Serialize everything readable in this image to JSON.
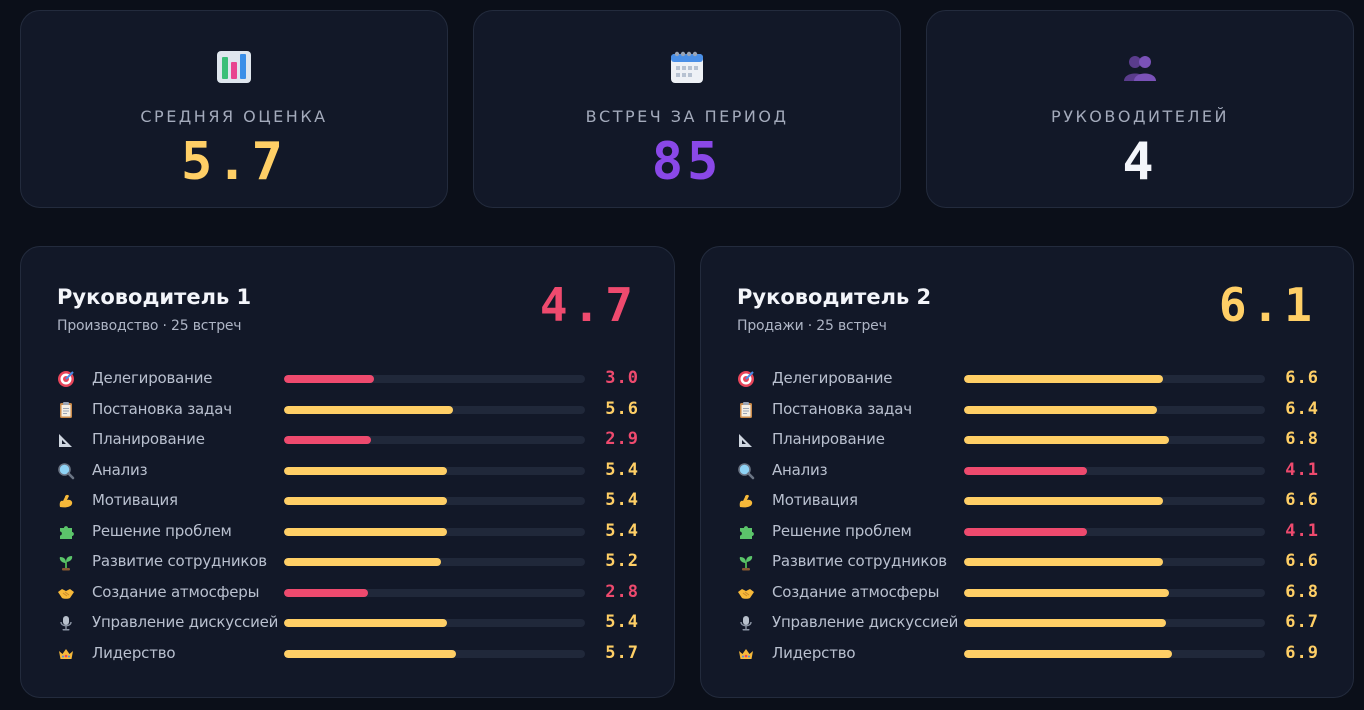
{
  "colors": {
    "yellow": "#ffcf66",
    "purple": "#8a48e8",
    "white": "#f3f5fa",
    "red": "#ee4a6e"
  },
  "stats": [
    {
      "icon": "bar-chart-icon",
      "label": "СРЕДНЯЯ ОЦЕНКА",
      "value": "5.7",
      "color": "#ffcf66"
    },
    {
      "icon": "calendar-icon",
      "label": "ВСТРЕЧ ЗА ПЕРИОД",
      "value": "85",
      "color": "#8a48e8"
    },
    {
      "icon": "people-icon",
      "label": "РУКОВОДИТЕЛЕЙ",
      "value": "4",
      "color": "#f3f5fa"
    }
  ],
  "managers": [
    {
      "name": "Руководитель 1",
      "subtitle": "Производство · 25 встреч",
      "score": "4.7",
      "score_color": "#ee4a6e",
      "metrics": [
        {
          "icon": "target-icon",
          "label": "Делегирование",
          "value": "3.0",
          "fill": 0.3,
          "status": "low"
        },
        {
          "icon": "clipboard-icon",
          "label": "Постановка задач",
          "value": "5.6",
          "fill": 0.56,
          "status": "ok"
        },
        {
          "icon": "ruler-icon",
          "label": "Планирование",
          "value": "2.9",
          "fill": 0.29,
          "status": "low"
        },
        {
          "icon": "magnifier-icon",
          "label": "Анализ",
          "value": "5.4",
          "fill": 0.54,
          "status": "ok"
        },
        {
          "icon": "muscle-icon",
          "label": "Мотивация",
          "value": "5.4",
          "fill": 0.54,
          "status": "ok"
        },
        {
          "icon": "puzzle-icon",
          "label": "Решение проблем",
          "value": "5.4",
          "fill": 0.54,
          "status": "ok"
        },
        {
          "icon": "sprout-icon",
          "label": "Развитие сотрудников",
          "value": "5.2",
          "fill": 0.52,
          "status": "ok"
        },
        {
          "icon": "handshake-icon",
          "label": "Создание атмосферы",
          "value": "2.8",
          "fill": 0.28,
          "status": "low"
        },
        {
          "icon": "microphone-icon",
          "label": "Управление дискуссией",
          "value": "5.4",
          "fill": 0.54,
          "status": "ok"
        },
        {
          "icon": "crown-icon",
          "label": "Лидерство",
          "value": "5.7",
          "fill": 0.57,
          "status": "ok"
        }
      ]
    },
    {
      "name": "Руководитель 2",
      "subtitle": "Продажи · 25 встреч",
      "score": "6.1",
      "score_color": "#ffcf66",
      "metrics": [
        {
          "icon": "target-icon",
          "label": "Делегирование",
          "value": "6.6",
          "fill": 0.66,
          "status": "ok"
        },
        {
          "icon": "clipboard-icon",
          "label": "Постановка задач",
          "value": "6.4",
          "fill": 0.64,
          "status": "ok"
        },
        {
          "icon": "ruler-icon",
          "label": "Планирование",
          "value": "6.8",
          "fill": 0.68,
          "status": "ok"
        },
        {
          "icon": "magnifier-icon",
          "label": "Анализ",
          "value": "4.1",
          "fill": 0.41,
          "status": "low"
        },
        {
          "icon": "muscle-icon",
          "label": "Мотивация",
          "value": "6.6",
          "fill": 0.66,
          "status": "ok"
        },
        {
          "icon": "puzzle-icon",
          "label": "Решение проблем",
          "value": "4.1",
          "fill": 0.41,
          "status": "low"
        },
        {
          "icon": "sprout-icon",
          "label": "Развитие сотрудников",
          "value": "6.6",
          "fill": 0.66,
          "status": "ok"
        },
        {
          "icon": "handshake-icon",
          "label": "Создание атмосферы",
          "value": "6.8",
          "fill": 0.68,
          "status": "ok"
        },
        {
          "icon": "microphone-icon",
          "label": "Управление дискуссией",
          "value": "6.7",
          "fill": 0.67,
          "status": "ok"
        },
        {
          "icon": "crown-icon",
          "label": "Лидерство",
          "value": "6.9",
          "fill": 0.69,
          "status": "ok"
        }
      ]
    }
  ]
}
